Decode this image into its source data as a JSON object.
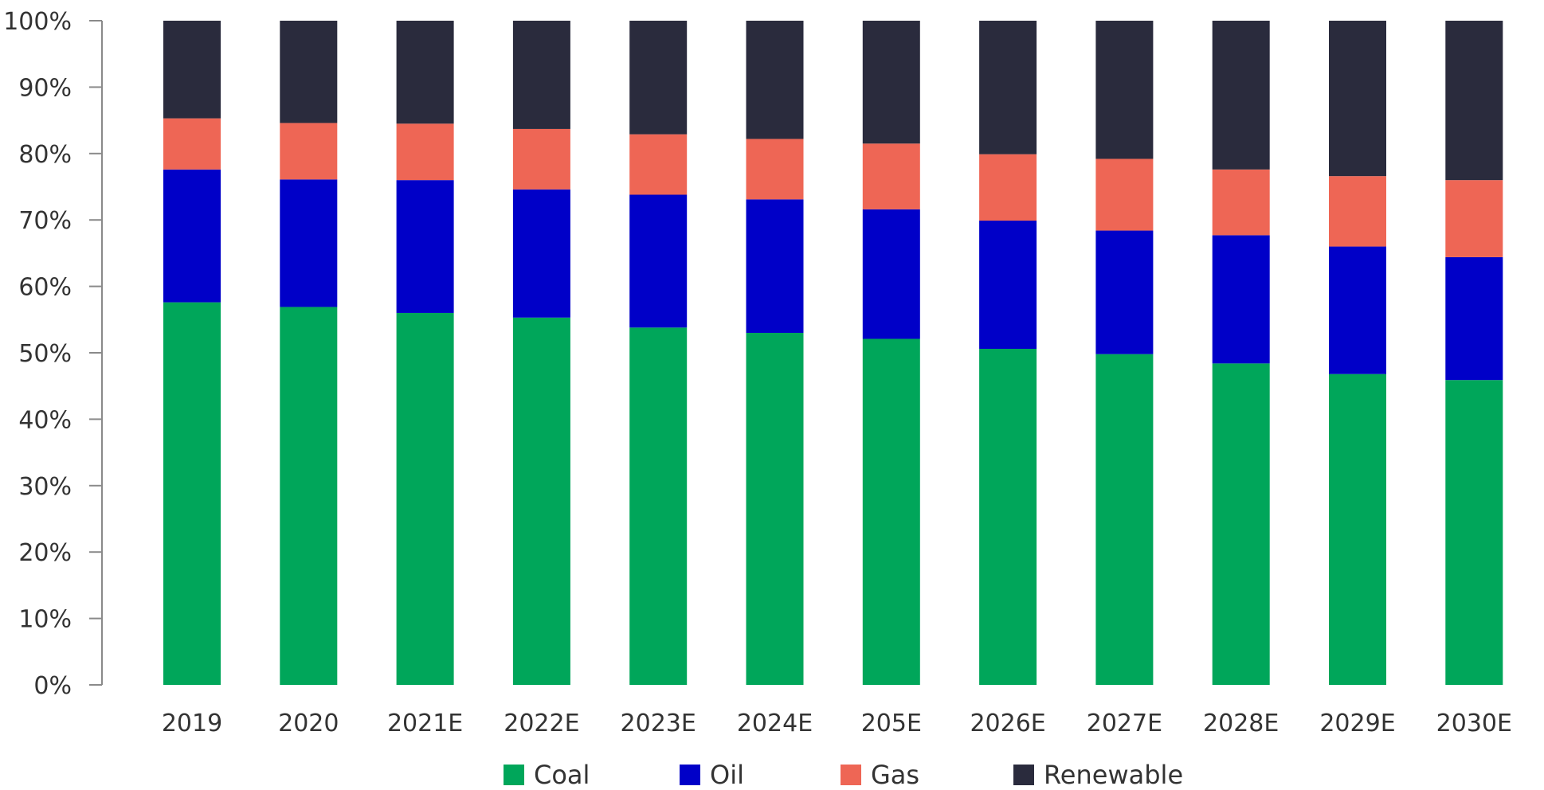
{
  "chart_data": {
    "type": "bar",
    "stacked": true,
    "percent_stacked": true,
    "categories": [
      "2019",
      "2020",
      "2021E",
      "2022E",
      "2023E",
      "2024E",
      "205E",
      "2026E",
      "2027E",
      "2028E",
      "2029E",
      "2030E"
    ],
    "series": [
      {
        "name": "Coal",
        "color": "#00a65a",
        "values": [
          57.6,
          56.9,
          56.0,
          55.3,
          53.8,
          53.0,
          52.1,
          50.6,
          49.8,
          48.4,
          46.8,
          45.9
        ]
      },
      {
        "name": "Oil",
        "color": "#0000c8",
        "values": [
          20.0,
          19.2,
          20.0,
          19.3,
          20.0,
          20.1,
          19.5,
          19.3,
          18.6,
          19.3,
          19.2,
          18.5
        ]
      },
      {
        "name": "Gas",
        "color": "#ee6655",
        "values": [
          7.7,
          8.5,
          8.5,
          9.1,
          9.1,
          9.1,
          9.9,
          10.0,
          10.8,
          9.9,
          10.6,
          11.6
        ]
      },
      {
        "name": "Renewable",
        "color": "#2a2b3d",
        "values": [
          14.7,
          15.4,
          15.5,
          16.3,
          17.1,
          17.8,
          18.5,
          20.1,
          20.8,
          22.4,
          23.4,
          24.0
        ]
      }
    ],
    "y_ticks": [
      "0%",
      "10%",
      "20%",
      "30%",
      "40%",
      "50%",
      "60%",
      "70%",
      "80%",
      "90%",
      "100%"
    ],
    "ylim": [
      0,
      100
    ],
    "grid": false,
    "legend_position": "bottom"
  }
}
